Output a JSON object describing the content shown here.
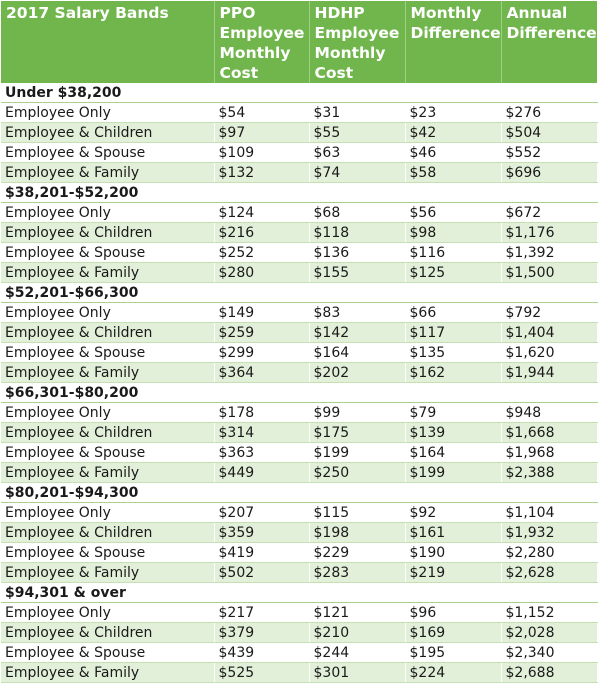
{
  "headers": [
    "2017 Salary Bands",
    "PPO Employee Monthly Cost",
    "HDHP Employee Monthly Cost",
    "Monthly Difference",
    "Annual Difference"
  ],
  "groups": [
    {
      "band": "Under $38,200",
      "rows": [
        [
          "Employee Only",
          "$54",
          "$31",
          "$23",
          "$276"
        ],
        [
          "Employee & Children",
          "$97",
          "$55",
          "$42",
          "$504"
        ],
        [
          "Employee & Spouse",
          "$109",
          "$63",
          "$46",
          "$552"
        ],
        [
          "Employee & Family",
          "$132",
          "$74",
          "$58",
          "$696"
        ]
      ]
    },
    {
      "band": "$38,201-$52,200",
      "rows": [
        [
          "Employee Only",
          "$124",
          "$68",
          "$56",
          "$672"
        ],
        [
          "Employee & Children",
          "$216",
          "$118",
          "$98",
          "$1,176"
        ],
        [
          "Employee & Spouse",
          "$252",
          "$136",
          "$116",
          "$1,392"
        ],
        [
          "Employee & Family",
          "$280",
          "$155",
          "$125",
          "$1,500"
        ]
      ]
    },
    {
      "band": "$52,201-$66,300",
      "rows": [
        [
          "Employee Only",
          "$149",
          "$83",
          "$66",
          "$792"
        ],
        [
          "Employee & Children",
          "$259",
          "$142",
          "$117",
          "$1,404"
        ],
        [
          "Employee & Spouse",
          "$299",
          "$164",
          "$135",
          "$1,620"
        ],
        [
          "Employee & Family",
          "$364",
          "$202",
          "$162",
          "$1,944"
        ]
      ]
    },
    {
      "band": "$66,301-$80,200",
      "rows": [
        [
          "Employee Only",
          "$178",
          "$99",
          "$79",
          "$948"
        ],
        [
          "Employee & Children",
          "$314",
          "$175",
          "$139",
          "$1,668"
        ],
        [
          "Employee & Spouse",
          "$363",
          "$199",
          "$164",
          "$1,968"
        ],
        [
          "Employee & Family",
          "$449",
          "$250",
          "$199",
          "$2,388"
        ]
      ]
    },
    {
      "band": "$80,201-$94,300",
      "rows": [
        [
          "Employee Only",
          "$207",
          "$115",
          "$92",
          "$1,104"
        ],
        [
          "Employee & Children",
          "$359",
          "$198",
          "$161",
          "$1,932"
        ],
        [
          "Employee & Spouse",
          "$419",
          "$229",
          "$190",
          "$2,280"
        ],
        [
          "Employee & Family",
          "$502",
          "$283",
          "$219",
          "$2,628"
        ]
      ]
    },
    {
      "band": "$94,301 & over",
      "rows": [
        [
          "Employee Only",
          "$217",
          "$121",
          "$96",
          "$1,152"
        ],
        [
          "Employee & Children",
          "$379",
          "$210",
          "$169",
          "$2,028"
        ],
        [
          "Employee & Spouse",
          "$439",
          "$244",
          "$195",
          "$2,340"
        ],
        [
          "Employee & Family",
          "$525",
          "$301",
          "$224",
          "$2,688"
        ]
      ]
    }
  ],
  "colors": {
    "header_bg": "#71b64c",
    "band_row_alt": "#e2efd9"
  }
}
